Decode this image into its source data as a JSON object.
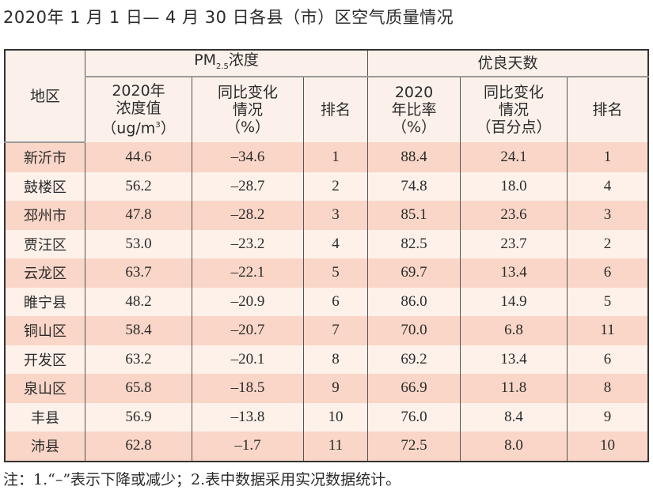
{
  "title": "2020年 1 月 1 日— 4 月 30 日各县（市）区空气质量情况",
  "table": {
    "header": {
      "region": "地区",
      "pm_group": {
        "prefix": "PM",
        "sub": "2.5",
        "suffix": "浓度"
      },
      "good_group": "优良天数",
      "pm_value": [
        "2020年",
        "浓度值",
        "（ug/m",
        "3",
        "）"
      ],
      "pm_change": [
        "同比变化",
        "情况",
        "（%）"
      ],
      "pm_rank": "排名",
      "good_rate": [
        "2020",
        "年比率",
        "（%）"
      ],
      "good_change": [
        "同比变化",
        "情况",
        "（百分点）"
      ],
      "good_rank": "排名"
    },
    "rows": [
      [
        "新沂市",
        "44.6",
        "–34.6",
        "1",
        "88.4",
        "24.1",
        "1"
      ],
      [
        "鼓楼区",
        "56.2",
        "–28.7",
        "2",
        "74.8",
        "18.0",
        "4"
      ],
      [
        "邳州市",
        "47.8",
        "–28.2",
        "3",
        "85.1",
        "23.6",
        "3"
      ],
      [
        "贾汪区",
        "53.0",
        "–23.2",
        "4",
        "82.5",
        "23.7",
        "2"
      ],
      [
        "云龙区",
        "63.7",
        "–22.1",
        "5",
        "69.7",
        "13.4",
        "6"
      ],
      [
        "睢宁县",
        "48.2",
        "–20.9",
        "6",
        "86.0",
        "14.9",
        "5"
      ],
      [
        "铜山区",
        "58.4",
        "–20.7",
        "7",
        "70.0",
        "6.8",
        "11"
      ],
      [
        "开发区",
        "63.2",
        "–20.1",
        "8",
        "69.2",
        "13.4",
        "6"
      ],
      [
        "泉山区",
        "65.8",
        "–18.5",
        "9",
        "66.9",
        "11.8",
        "8"
      ],
      [
        "丰县",
        "56.9",
        "–13.8",
        "10",
        "76.0",
        "8.4",
        "9"
      ],
      [
        "沛县",
        "62.8",
        "–1.7",
        "11",
        "72.5",
        "8.0",
        "10"
      ]
    ]
  },
  "note": "注：1.“–”表示下降或减少；2.表中数据采用实况数据统计。",
  "colors": {
    "row_odd": "#f9d6c7",
    "row_even": "#fdf1ea",
    "header": "#fbf1ea"
  }
}
